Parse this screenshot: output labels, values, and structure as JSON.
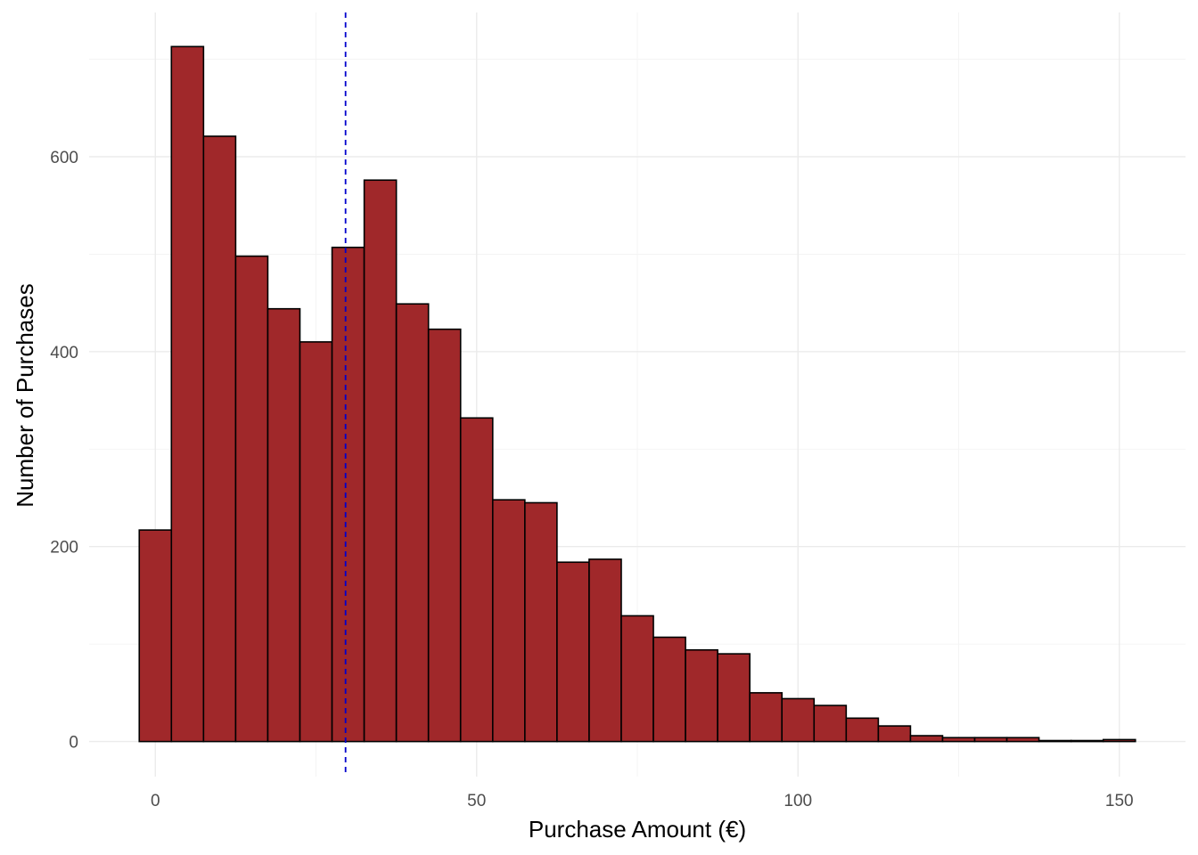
{
  "chart_data": {
    "type": "bar",
    "subtype": "histogram",
    "title": "",
    "xlabel": "Purchase Amount (€)",
    "ylabel": "Number of Purchases",
    "bin_width": 5,
    "bins": [
      {
        "center": 0,
        "count": 217
      },
      {
        "center": 5,
        "count": 713
      },
      {
        "center": 10,
        "count": 621
      },
      {
        "center": 15,
        "count": 498
      },
      {
        "center": 20,
        "count": 444
      },
      {
        "center": 25,
        "count": 410
      },
      {
        "center": 30,
        "count": 507
      },
      {
        "center": 35,
        "count": 576
      },
      {
        "center": 40,
        "count": 449
      },
      {
        "center": 45,
        "count": 423
      },
      {
        "center": 50,
        "count": 332
      },
      {
        "center": 55,
        "count": 248
      },
      {
        "center": 60,
        "count": 245
      },
      {
        "center": 65,
        "count": 184
      },
      {
        "center": 70,
        "count": 187
      },
      {
        "center": 75,
        "count": 129
      },
      {
        "center": 80,
        "count": 107
      },
      {
        "center": 85,
        "count": 94
      },
      {
        "center": 90,
        "count": 90
      },
      {
        "center": 95,
        "count": 50
      },
      {
        "center": 100,
        "count": 44
      },
      {
        "center": 105,
        "count": 37
      },
      {
        "center": 110,
        "count": 24
      },
      {
        "center": 115,
        "count": 16
      },
      {
        "center": 120,
        "count": 6
      },
      {
        "center": 125,
        "count": 4
      },
      {
        "center": 130,
        "count": 4
      },
      {
        "center": 135,
        "count": 4
      },
      {
        "center": 140,
        "count": 1
      },
      {
        "center": 145,
        "count": 1
      },
      {
        "center": 150,
        "count": 2
      }
    ],
    "vline": {
      "x": 29.6,
      "color": "#0000cc",
      "style": "dashed"
    },
    "xlim": [
      -10.3,
      160.3
    ],
    "ylim": [
      -36,
      748
    ],
    "xticks": [
      0,
      50,
      100,
      150
    ],
    "xtick_labels": [
      "0",
      "50",
      "100",
      "150"
    ],
    "yticks": [
      0,
      200,
      400,
      600
    ],
    "ytick_labels": [
      "0",
      "200",
      "400",
      "600"
    ],
    "grid": true,
    "legend": "none",
    "colors": {
      "bar_fill": "#a0282a",
      "bar_outline": "#000000",
      "vline": "#0000cc"
    }
  }
}
